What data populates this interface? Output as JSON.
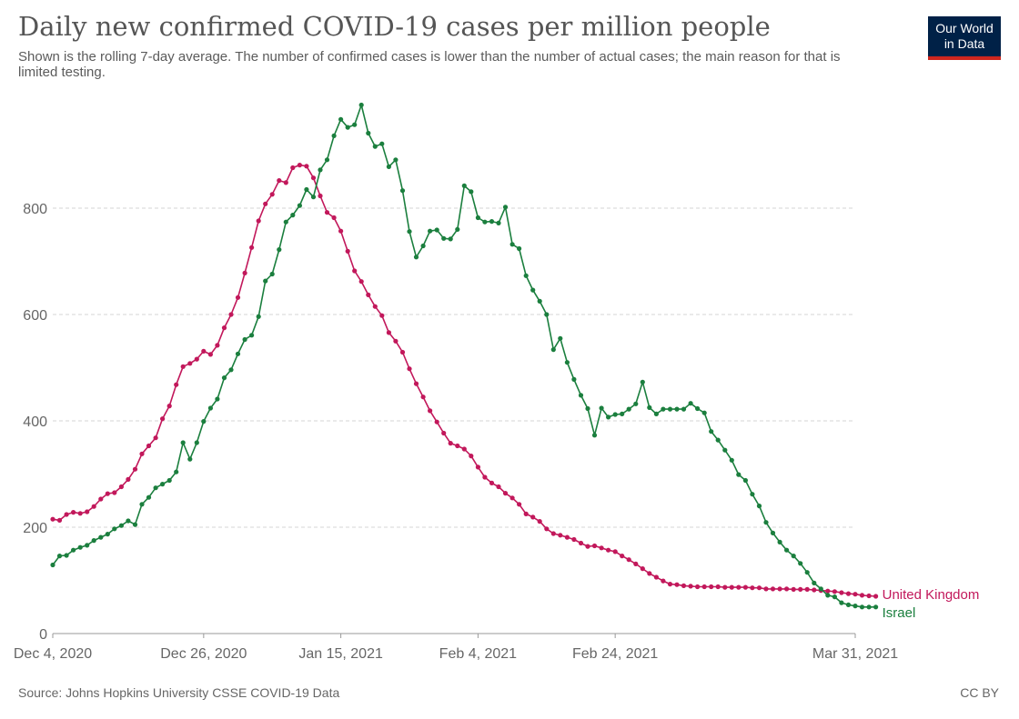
{
  "header": {
    "title": "Daily new confirmed COVID-19 cases per million people",
    "subtitle": "Shown is the rolling 7-day average. The number of confirmed cases is lower than the number of actual cases; the main reason for that is limited testing.",
    "logo_line1": "Our World",
    "logo_line2": "in Data"
  },
  "footer": {
    "source": "Source: Johns Hopkins University CSSE COVID-19 Data",
    "license": "CC BY"
  },
  "chart_data": {
    "type": "line",
    "title": "Daily new confirmed COVID-19 cases per million people",
    "xlabel": "",
    "ylabel": "",
    "x_start": "2020-12-04",
    "x_end": "2021-03-31",
    "ylim": [
      0,
      1000
    ],
    "y_ticks": [
      0,
      200,
      400,
      600,
      800
    ],
    "x_ticks": [
      {
        "date": "2020-12-04",
        "label": "Dec 4, 2020"
      },
      {
        "date": "2020-12-26",
        "label": "Dec 26, 2020"
      },
      {
        "date": "2021-01-15",
        "label": "Jan 15, 2021"
      },
      {
        "date": "2021-02-04",
        "label": "Feb 4, 2021"
      },
      {
        "date": "2021-02-24",
        "label": "Feb 24, 2021"
      },
      {
        "date": "2021-03-31",
        "label": "Mar 31, 2021"
      }
    ],
    "grid": true,
    "legend": "line-end labels",
    "series": [
      {
        "name": "United Kingdom",
        "color": "#c2185b",
        "values": [
          215,
          213,
          224,
          228,
          226,
          229,
          239,
          253,
          263,
          265,
          276,
          290,
          309,
          338,
          353,
          368,
          404,
          428,
          468,
          502,
          508,
          516,
          531,
          525,
          542,
          575,
          600,
          632,
          678,
          726,
          776,
          808,
          826,
          852,
          848,
          876,
          881,
          879,
          857,
          823,
          792,
          782,
          757,
          719,
          682,
          662,
          637,
          615,
          598,
          566,
          550,
          529,
          498,
          470,
          445,
          419,
          398,
          377,
          358,
          353,
          347,
          334,
          313,
          294,
          283,
          276,
          264,
          255,
          243,
          225,
          219,
          211,
          197,
          188,
          185,
          181,
          177,
          170,
          164,
          165,
          161,
          157,
          154,
          146,
          139,
          131,
          122,
          113,
          106,
          99,
          93,
          92,
          90,
          89,
          88,
          88,
          88,
          88,
          87,
          87,
          87,
          87,
          86,
          86,
          84,
          84,
          84,
          84,
          83,
          83,
          83,
          82,
          81,
          80,
          79,
          77,
          75,
          74,
          72,
          71,
          70
        ]
      },
      {
        "name": "Israel",
        "color": "#1b7f3e",
        "values": [
          129,
          146,
          147,
          157,
          162,
          166,
          175,
          181,
          187,
          197,
          203,
          212,
          205,
          243,
          256,
          274,
          281,
          288,
          304,
          359,
          328,
          359,
          399,
          424,
          441,
          481,
          496,
          526,
          553,
          561,
          596,
          663,
          676,
          722,
          774,
          787,
          805,
          835,
          821,
          872,
          891,
          936,
          967,
          952,
          957,
          994,
          941,
          916,
          921,
          878,
          891,
          833,
          756,
          708,
          729,
          757,
          759,
          743,
          742,
          760,
          842,
          831,
          782,
          774,
          775,
          772,
          802,
          732,
          724,
          673,
          646,
          625,
          600,
          534,
          555,
          510,
          478,
          448,
          423,
          373,
          424,
          407,
          412,
          413,
          422,
          432,
          473,
          425,
          413,
          422,
          422,
          422,
          422,
          433,
          423,
          415,
          380,
          364,
          345,
          326,
          299,
          288,
          262,
          240,
          209,
          189,
          172,
          157,
          146,
          132,
          115,
          95,
          84,
          72,
          69,
          58,
          54,
          52,
          50,
          50,
          50
        ]
      }
    ]
  }
}
